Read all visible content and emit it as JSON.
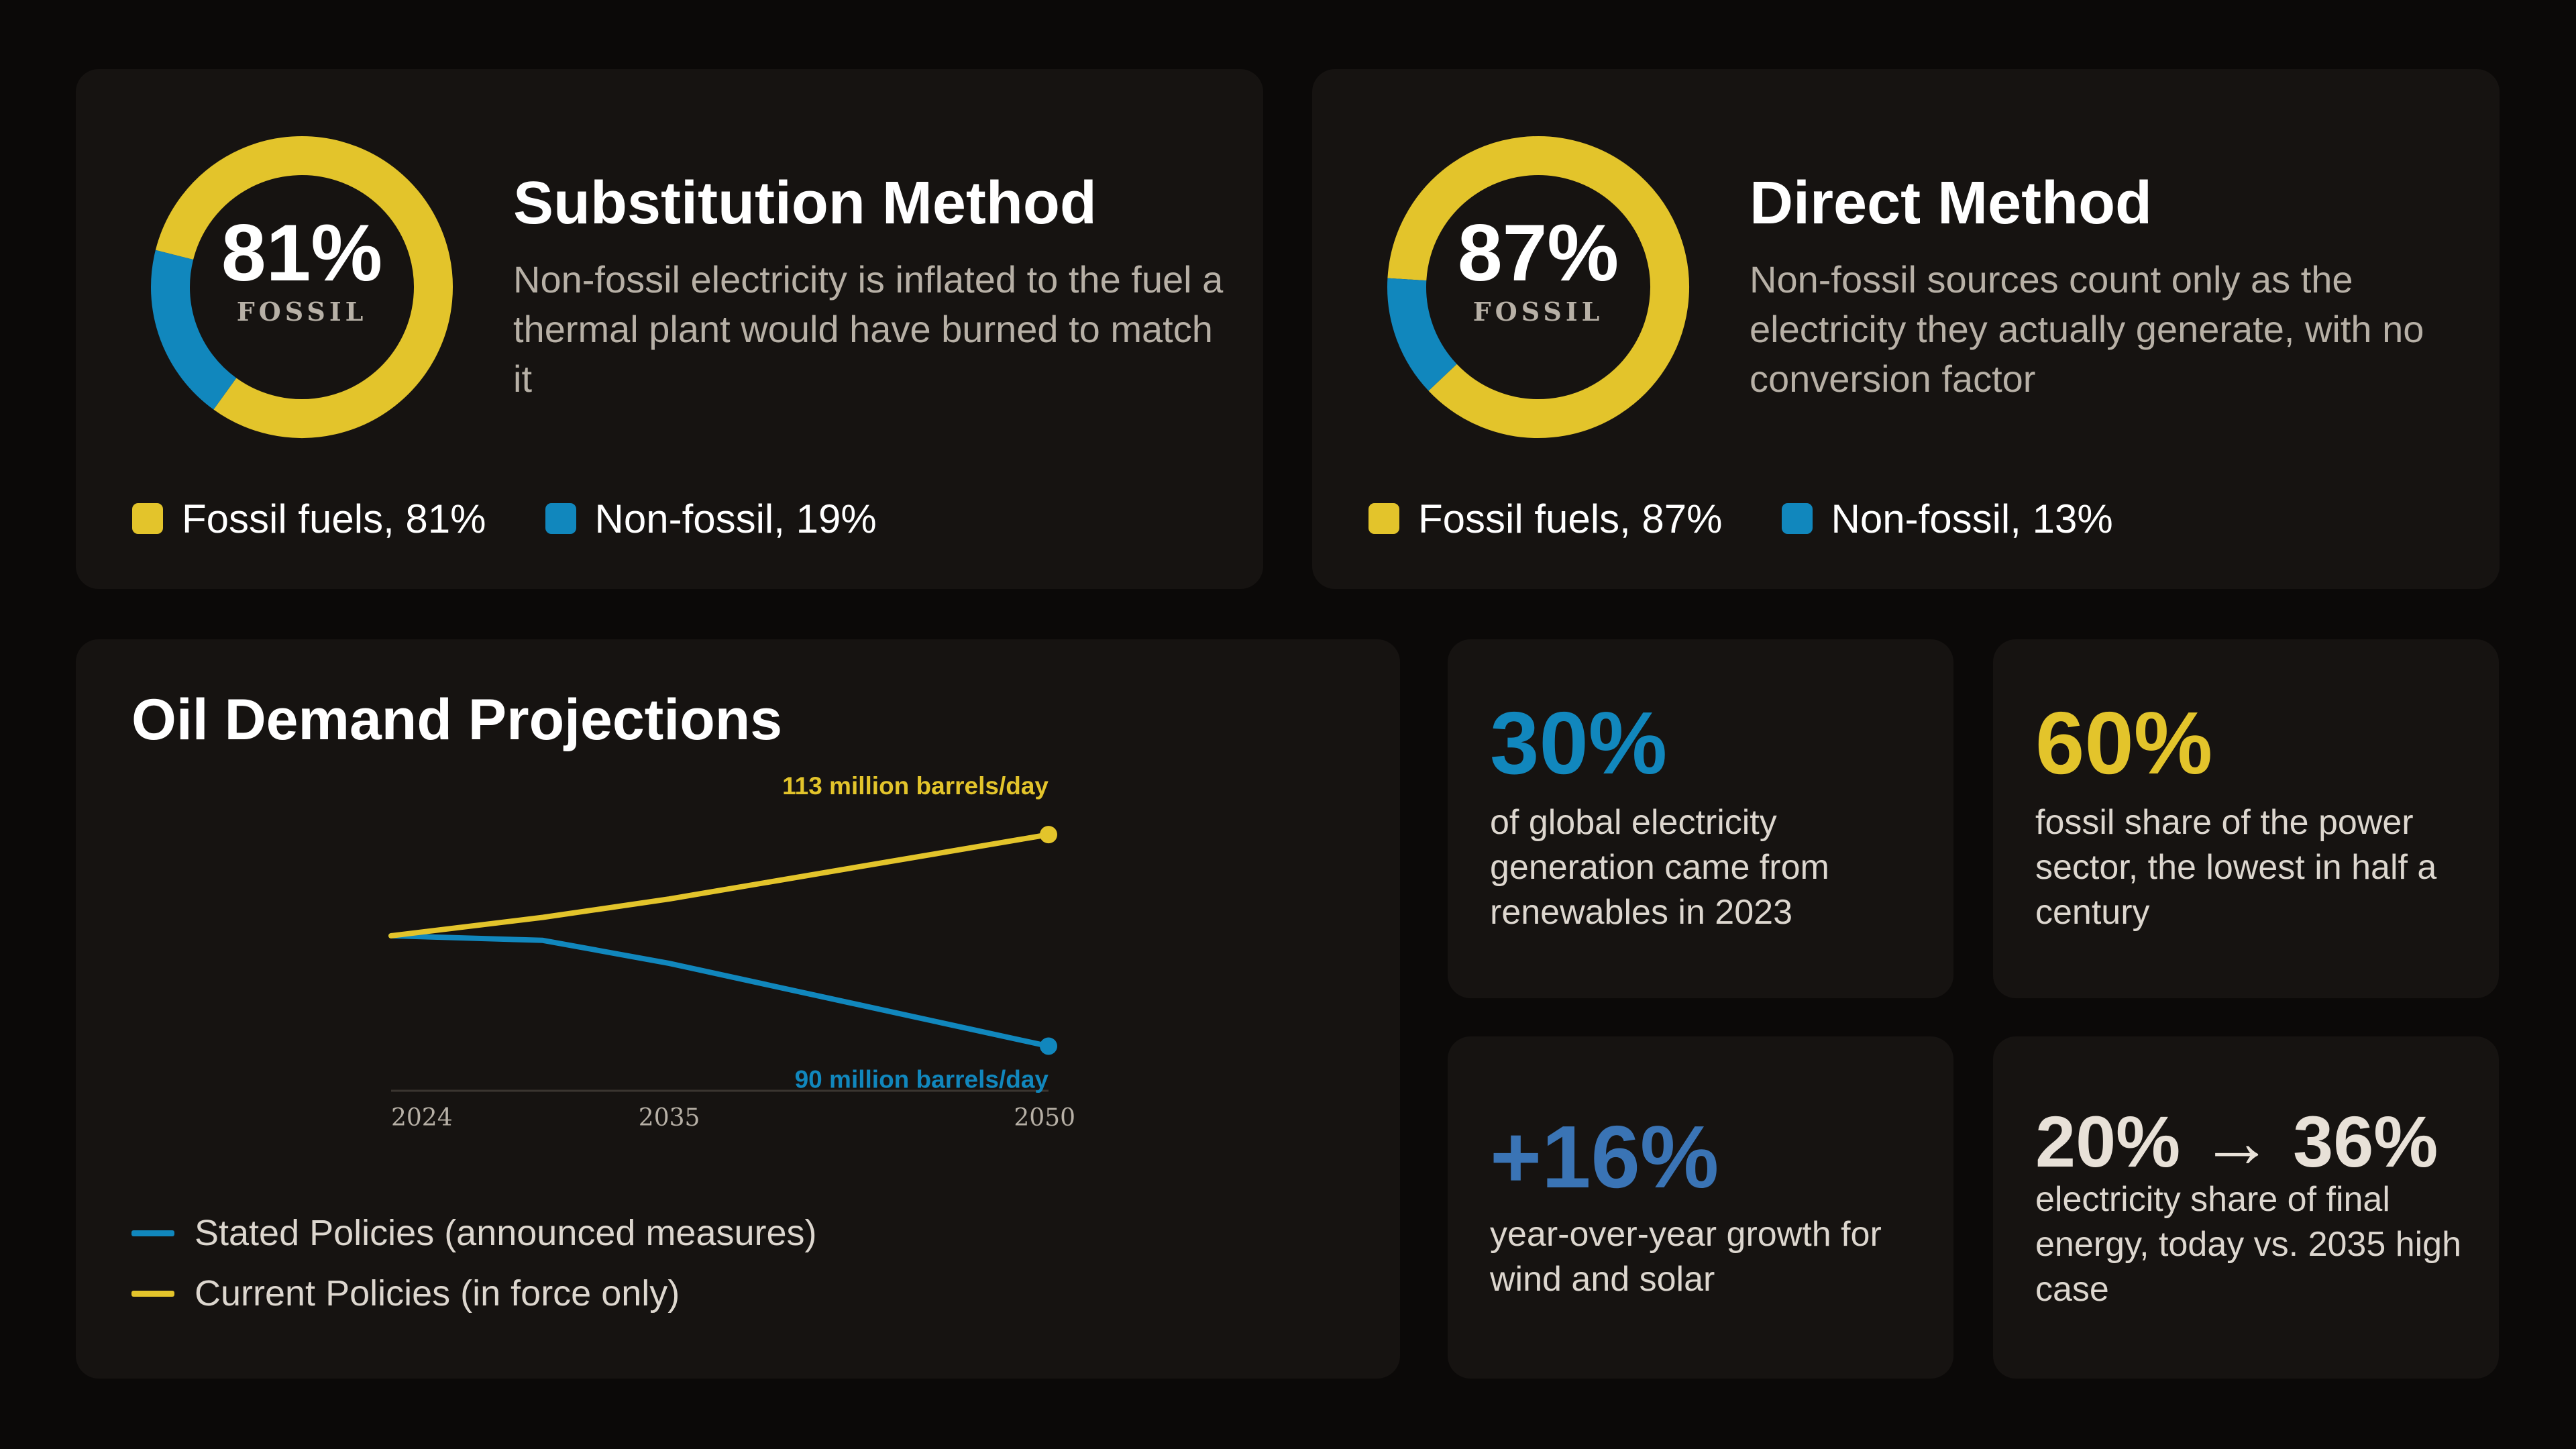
{
  "colors": {
    "fossil": "#e3c42b",
    "non_fossil": "#1187bd",
    "growth": "#3a74b5",
    "text_light": "#e8e1d8"
  },
  "substitution": {
    "percent_text": "81%",
    "center_label": "FOSSIL",
    "title": "Substitution Method",
    "description": "Non-fossil electricity is inflated to the fuel a thermal plant would have burned to match it",
    "legend": [
      "Fossil fuels, 81%",
      "Non-fossil, 19%"
    ]
  },
  "direct": {
    "percent_text": "87%",
    "center_label": "FOSSIL",
    "title": "Direct Method",
    "description": "Non-fossil sources count only as the electricity they actually generate, with no conversion factor",
    "legend": [
      "Fossil fuels, 87%",
      "Non-fossil, 13%"
    ]
  },
  "oil": {
    "title": "Oil Demand Projections",
    "legend": [
      "Stated Policies (announced measures)",
      "Current Policies (in force only)"
    ],
    "end_labels": [
      "90 million barrels/day",
      "113 million barrels/day"
    ]
  },
  "stats": [
    {
      "value": "30%",
      "description": "of global electricity generation came from renewables in 2023"
    },
    {
      "value": "60%",
      "description": "fossil share of the power sector, the lowest in half a century"
    },
    {
      "value": "+16%",
      "description": "year-over-year growth for wind and solar"
    },
    {
      "value": "20% → 36%",
      "description": "electricity share of final energy, today vs. 2035 high case"
    }
  ],
  "chart_data": [
    {
      "type": "pie",
      "title": "Substitution Method",
      "labels": [
        "Fossil fuels",
        "Non-fossil"
      ],
      "values": [
        81,
        19
      ],
      "colors": [
        "#e3c42b",
        "#1187bd"
      ]
    },
    {
      "type": "pie",
      "title": "Direct Method",
      "labels": [
        "Fossil fuels",
        "Non-fossil"
      ],
      "values": [
        87,
        13
      ],
      "colors": [
        "#e3c42b",
        "#1187bd"
      ]
    },
    {
      "type": "line",
      "title": "Oil Demand Projections",
      "x": [
        2024,
        2030,
        2035,
        2050
      ],
      "x_ticks": [
        "2024",
        "2035",
        "2050"
      ],
      "series": [
        {
          "name": "Stated Policies (announced measures)",
          "values": [
            102,
            101.5,
            99,
            90
          ],
          "color": "#1187bd",
          "end_label": "90 million barrels/day"
        },
        {
          "name": "Current Policies (in force only)",
          "values": [
            102,
            104,
            106,
            113
          ],
          "color": "#e3c42b",
          "end_label": "113 million barrels/day"
        }
      ],
      "ylim": [
        85,
        116
      ],
      "legend": "bottom-left"
    }
  ]
}
